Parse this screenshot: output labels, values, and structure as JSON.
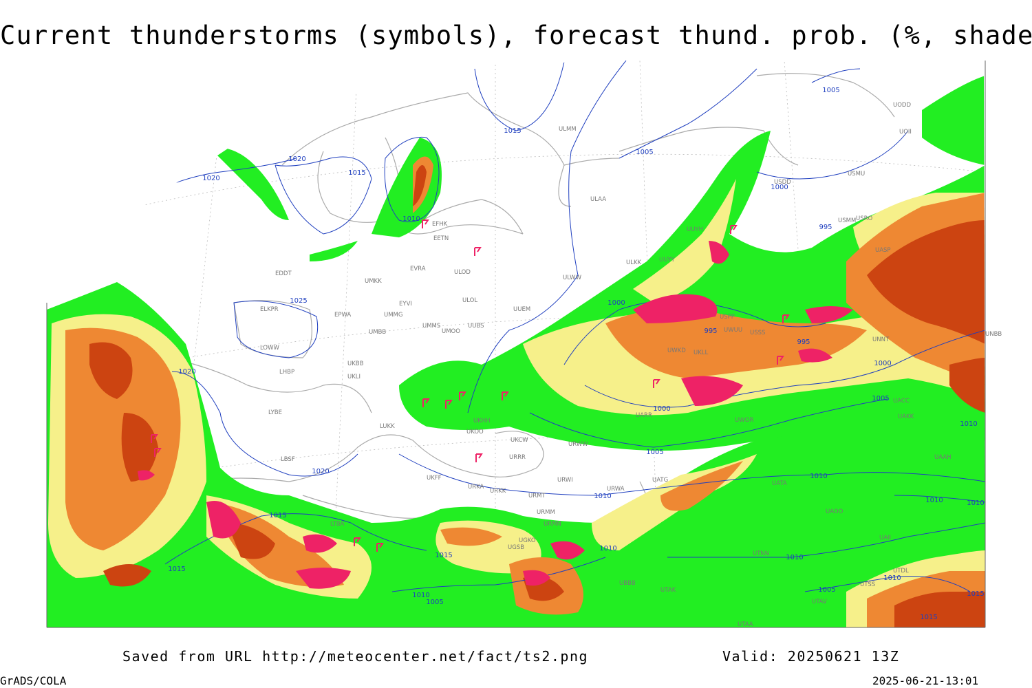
{
  "title": "Current thunderstorms (symbols), forecast thund. prob. (%, shaded)",
  "footer": {
    "saved": "Saved from URL http://meteocenter.net/fact/ts2.png",
    "valid": "Valid: 20250621 13Z",
    "software": "GrADS/COLA",
    "timestamp": "2025-06-21-13:01"
  },
  "colors": {
    "prob_low": "#22ee22",
    "prob_mid": "#f6f08a",
    "prob_high": "#ee8833",
    "prob_max": "#cc4411",
    "storm_symbol": "#ee2266",
    "isobar": "#1f3fbf",
    "coastline": "#aaaaaa",
    "graticule": "#bbbbbb"
  },
  "isobar_labels": [
    {
      "text": "1020"
    },
    {
      "text": "1020"
    },
    {
      "text": "1015"
    },
    {
      "text": "1010"
    },
    {
      "text": "1015"
    },
    {
      "text": "1005"
    },
    {
      "text": "1005"
    },
    {
      "text": "1000"
    },
    {
      "text": "995"
    },
    {
      "text": "1025"
    },
    {
      "text": "1020"
    },
    {
      "text": "1000"
    },
    {
      "text": "995"
    },
    {
      "text": "995"
    },
    {
      "text": "1000"
    },
    {
      "text": "1000"
    },
    {
      "text": "1005"
    },
    {
      "text": "1010"
    },
    {
      "text": "1005"
    },
    {
      "text": "1020"
    },
    {
      "text": "1015"
    },
    {
      "text": "1010"
    },
    {
      "text": "1010"
    },
    {
      "text": "1010"
    },
    {
      "text": "1015"
    },
    {
      "text": "1015"
    },
    {
      "text": "1010"
    },
    {
      "text": "1005"
    },
    {
      "text": "1010"
    },
    {
      "text": "1010"
    },
    {
      "text": "1010"
    },
    {
      "text": "1005"
    },
    {
      "text": "1010"
    },
    {
      "text": "1015"
    },
    {
      "text": "1015"
    }
  ],
  "stations": [
    "EFHK",
    "EETN",
    "EVRA",
    "ULOD",
    "ULOL",
    "EDDT",
    "UMKK",
    "EYVI",
    "UMMG",
    "EPWA",
    "ELKPR",
    "UMBB",
    "UMMS",
    "UMOO",
    "UUBS",
    "UUEM",
    "ULKK",
    "UUYY",
    "ULWW",
    "ULAA",
    "UUYH",
    "ULMM",
    "USDD",
    "USMU",
    "UODD",
    "UOII",
    "USRO",
    "USPP",
    "UWUU",
    "UKLL",
    "UKLI",
    "UKBB",
    "LHBP",
    "LOWW",
    "LYBE",
    "LUKK",
    "UKHH",
    "UKOO",
    "UKCW",
    "URWW",
    "URRR",
    "UKFF",
    "LBSF",
    "URKA",
    "URKK",
    "URMT",
    "URWI",
    "URWA",
    "UATG",
    "UATA",
    "UAOO",
    "UACC",
    "UAKK",
    "UAAH",
    "UTNN",
    "UTAK",
    "UTAA",
    "UTSS",
    "UTAV",
    "UTDL",
    "UGSB",
    "UGKO",
    "UBBB",
    "UAII",
    "UWOR",
    "UARR",
    "UWKD",
    "USSS",
    "UNNT",
    "UNBB",
    "URMM",
    "URMN",
    "LTBA",
    "UASP",
    "USMM"
  ]
}
